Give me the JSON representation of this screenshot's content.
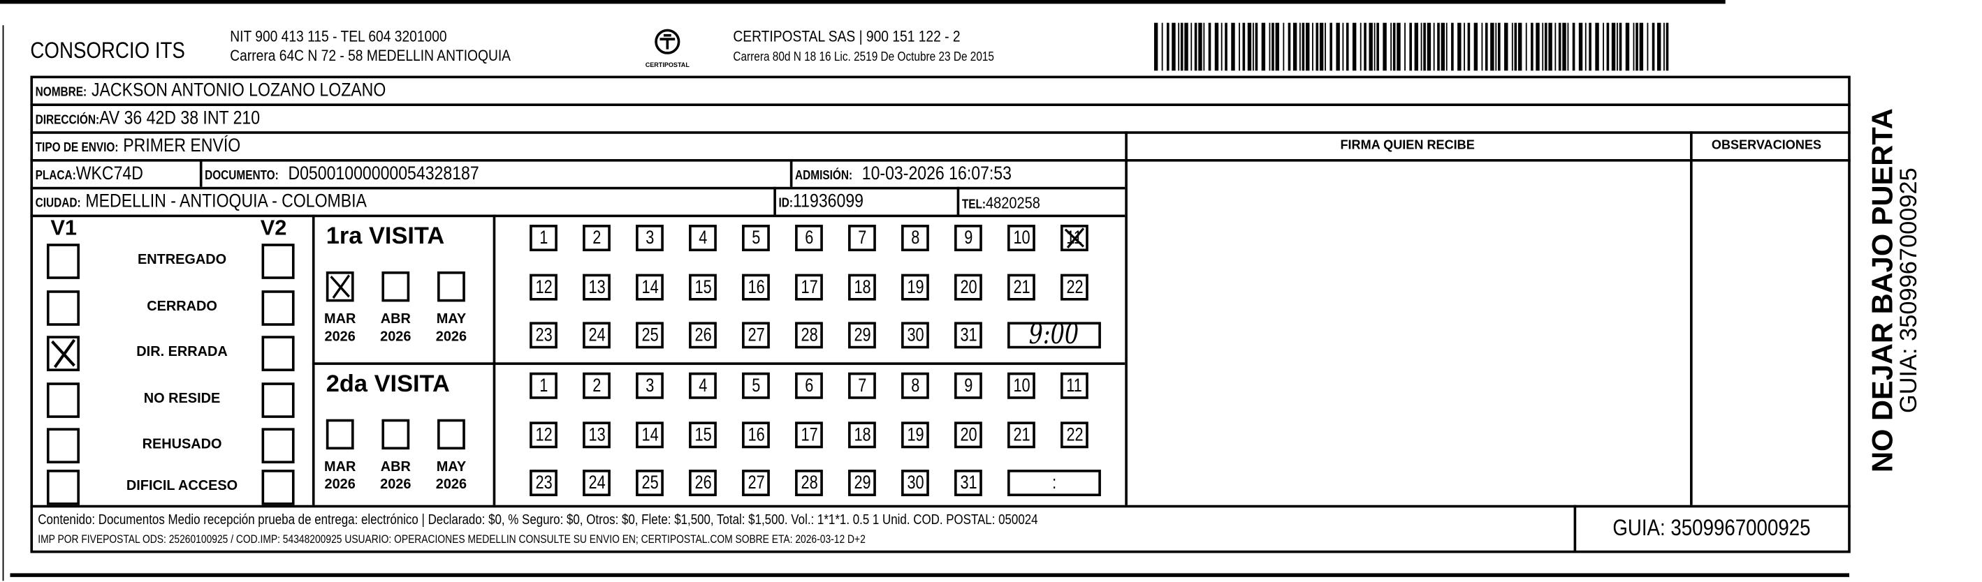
{
  "header": {
    "company": "CONSORCIO ITS",
    "company_line1": "NIT 900 413 115 - TEL 604 3201000",
    "company_line2": "Carrera 64C N 72 - 58 MEDELLIN ANTIOQUIA",
    "logo_text": "CERTIPOSTAL",
    "carrier_line1": "CERTIPOSTAL SAS | 900 151 122 - 2",
    "carrier_line2": "Carrera 80d N 18 16  Lic. 2519 De Octubre 23 De 2015",
    "barcode_icon": "barcode"
  },
  "fields": {
    "nombre_label": "NOMBRE:",
    "nombre": "JACKSON ANTONIO LOZANO LOZANO",
    "direccion_label": "DIRECCIÓN:",
    "direccion": "AV 36 42D 38 INT 210",
    "tipo_label": "TIPO DE ENVIO:",
    "tipo": "PRIMER ENVÍO",
    "placa_label": "PLACA:",
    "placa": "WKC74D",
    "documento_label": "DOCUMENTO:",
    "documento": "D05001000000054328187",
    "admision_label": "ADMISIÓN:",
    "admision": "10-03-2026 16:07:53",
    "ciudad_label": "CIUDAD:",
    "ciudad": "MEDELLIN - ANTIOQUIA - COLOMBIA",
    "id_label": "ID:",
    "id": "11936099",
    "tel_label": "TEL:",
    "tel": "4820258"
  },
  "signature": {
    "firma_label": "FIRMA QUIEN RECIBE",
    "observaciones_label": "OBSERVACIONES"
  },
  "status": {
    "v1_label": "V1",
    "v2_label": "V2",
    "options": [
      {
        "label": "ENTREGADO",
        "v1": false,
        "v2": false
      },
      {
        "label": "CERRADO",
        "v1": false,
        "v2": false
      },
      {
        "label": "DIR. ERRADA",
        "v1": true,
        "v2": false
      },
      {
        "label": "NO RESIDE",
        "v1": false,
        "v2": false
      },
      {
        "label": "REHUSADO",
        "v1": false,
        "v2": false
      },
      {
        "label": "DIFICIL ACCESO",
        "v1": false,
        "v2": false
      }
    ]
  },
  "visits": [
    {
      "title": "1ra VISITA",
      "months": [
        {
          "m": "MAR",
          "y": "2026",
          "checked": true
        },
        {
          "m": "ABR",
          "y": "2026",
          "checked": false
        },
        {
          "m": "MAY",
          "y": "2026",
          "checked": false
        }
      ],
      "days": [
        "1",
        "2",
        "3",
        "4",
        "5",
        "6",
        "7",
        "8",
        "9",
        "10",
        "11",
        "12",
        "13",
        "14",
        "15",
        "16",
        "17",
        "18",
        "19",
        "20",
        "21",
        "22",
        "23",
        "24",
        "25",
        "26",
        "27",
        "28",
        "29",
        "30",
        "31"
      ],
      "marked_day": "11",
      "time": "9:00"
    },
    {
      "title": "2da VISITA",
      "months": [
        {
          "m": "MAR",
          "y": "2026",
          "checked": false
        },
        {
          "m": "ABR",
          "y": "2026",
          "checked": false
        },
        {
          "m": "MAY",
          "y": "2026",
          "checked": false
        }
      ],
      "days": [
        "1",
        "2",
        "3",
        "4",
        "5",
        "6",
        "7",
        "8",
        "9",
        "10",
        "11",
        "12",
        "13",
        "14",
        "15",
        "16",
        "17",
        "18",
        "19",
        "20",
        "21",
        "22",
        "23",
        "24",
        "25",
        "26",
        "27",
        "28",
        "29",
        "30",
        "31"
      ],
      "marked_day": null,
      "time": ":"
    }
  ],
  "footer": {
    "line1": "Contenido: Documentos Medio recepción prueba de entrega: electrónico | Declarado: $0, % Seguro: $0, Otros: $0, Flete: $1,500, Total: $1,500. Vol.: 1*1*1. 0.5  1 Unid. COD. POSTAL: 050024",
    "line2": "IMP POR FIVEPOSTAL ODS: 25260100925 / COD.IMP: 54348200925 USUARIO: OPERACIONES MEDELLIN CONSULTE SU ENVIO EN; CERTIPOSTAL.COM SOBRE ETA: 2026-03-12 D+2",
    "guia": "GUIA: 3509967000925"
  },
  "side": {
    "warning": "NO DEJAR BAJO PUERTA",
    "guia": "GUIA: 3509967000925"
  }
}
